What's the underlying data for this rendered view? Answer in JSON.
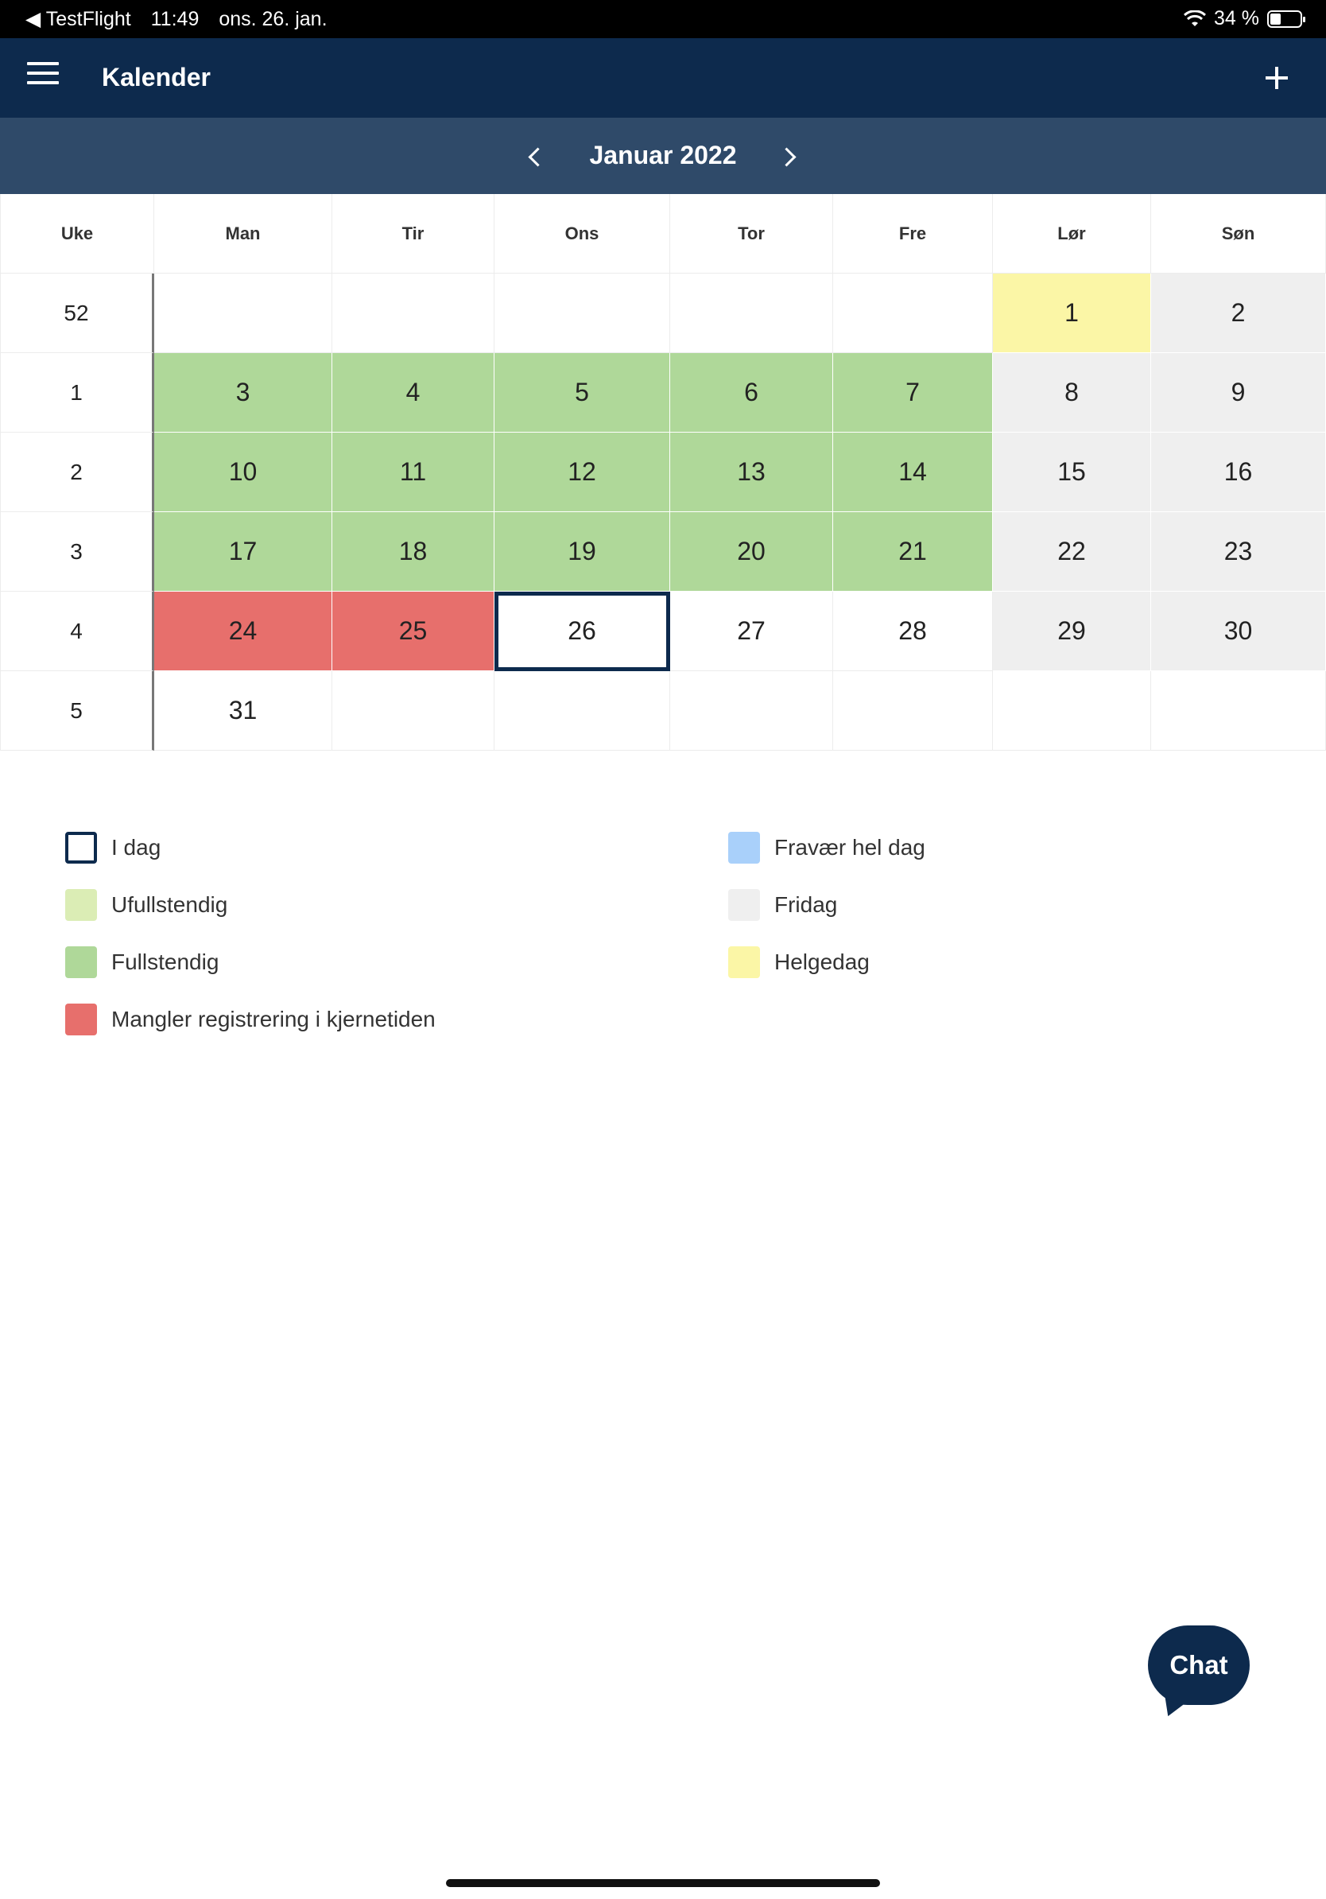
{
  "status_bar": {
    "back_app": "◀ TestFlight",
    "time": "11:49",
    "date": "ons. 26. jan.",
    "battery": "34 %"
  },
  "header": {
    "title": "Kalender"
  },
  "month_nav": {
    "label": "Januar 2022"
  },
  "calendar": {
    "headers": [
      "Uke",
      "Man",
      "Tir",
      "Ons",
      "Tor",
      "Fre",
      "Lør",
      "Søn"
    ],
    "rows": [
      {
        "week": "52",
        "days": [
          "",
          "",
          "",
          "",
          "",
          "1",
          "2"
        ]
      },
      {
        "week": "1",
        "days": [
          "3",
          "4",
          "5",
          "6",
          "7",
          "8",
          "9"
        ]
      },
      {
        "week": "2",
        "days": [
          "10",
          "11",
          "12",
          "13",
          "14",
          "15",
          "16"
        ]
      },
      {
        "week": "3",
        "days": [
          "17",
          "18",
          "19",
          "20",
          "21",
          "22",
          "23"
        ]
      },
      {
        "week": "4",
        "days": [
          "24",
          "25",
          "26",
          "27",
          "28",
          "29",
          "30"
        ]
      },
      {
        "week": "5",
        "days": [
          "31",
          "",
          "",
          "",
          "",
          "",
          ""
        ]
      }
    ]
  },
  "legend": {
    "today": "I dag",
    "incomplete": "Ufullstendig",
    "complete": "Fullstendig",
    "missing": "Mangler registrering i kjernetiden",
    "absence": "Fravær hel dag",
    "day_off": "Fridag",
    "holiday": "Helgedag"
  },
  "colors": {
    "header_bg": "#0d2a4d",
    "month_bar_bg": "#2f4a69",
    "complete": "#afd899",
    "incomplete": "#dbedb5",
    "missing": "#e76f6c",
    "absence": "#a9d0fa",
    "day_off": "#efefef",
    "holiday": "#fbf6a6"
  },
  "chat": {
    "label": "Chat"
  }
}
